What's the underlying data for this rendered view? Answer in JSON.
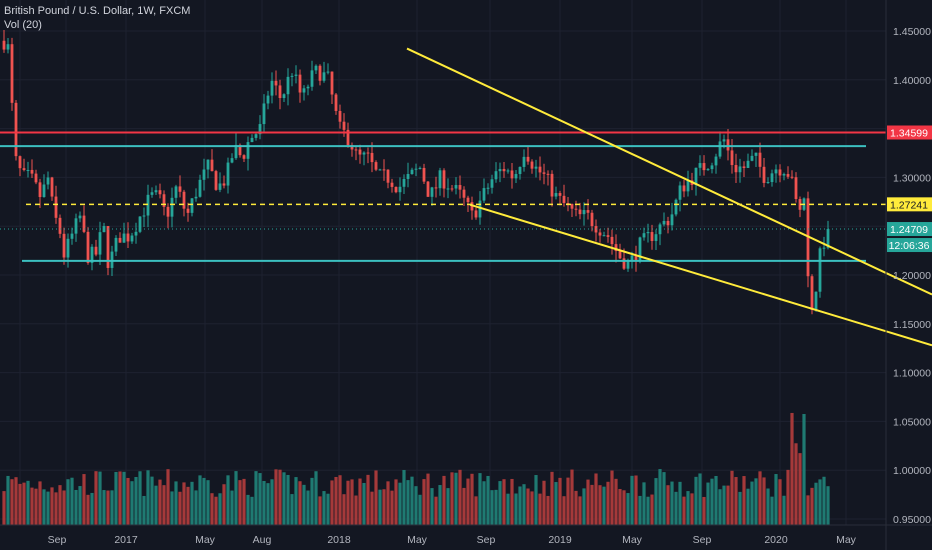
{
  "chart_data": {
    "type": "candlestick",
    "title": "British Pound / U.S. Dollar, 1W, FXCM",
    "subtitle": "Vol (20)",
    "y_axis": {
      "ticks": [
        "1.45000",
        "1.40000",
        "1.35000",
        "1.30000",
        "1.25000",
        "1.20000",
        "1.15000",
        "1.10000",
        "1.05000",
        "1.00000",
        "0.95000"
      ],
      "range": [
        0.95,
        1.45
      ],
      "position": "right"
    },
    "x_axis": {
      "labels": [
        "Sep",
        "2017",
        "May",
        "Aug",
        "2018",
        "May",
        "Sep",
        "2019",
        "May",
        "Sep",
        "2020",
        "May"
      ]
    },
    "price_tags": [
      {
        "value": "1.34599",
        "color": "#f23645",
        "text_color": "#ffffff"
      },
      {
        "value": "1.27241",
        "color": "#ffeb3b",
        "text_color": "#131722"
      },
      {
        "value": "1.24709",
        "color": "#26a69a",
        "text_color": "#ffffff"
      },
      {
        "value": "12:06:36",
        "color": "#26a69a",
        "text_color": "#ffffff"
      }
    ],
    "horizontal_lines": [
      {
        "price": 1.346,
        "color": "#f23645",
        "style": "solid"
      },
      {
        "price": 1.332,
        "color": "#3cc0c0",
        "style": "solid"
      },
      {
        "price": 1.2724,
        "color": "#ffeb3b",
        "style": "dashed"
      },
      {
        "price": 1.2145,
        "color": "#3cc0c0",
        "style": "solid"
      }
    ],
    "trendlines": [
      {
        "from": [
          1.432,
          "2018-04"
        ],
        "to": [
          1.19,
          "2020-06"
        ],
        "color": "#ffeb3b"
      },
      {
        "from": [
          1.272,
          "2018-08"
        ],
        "to": [
          1.137,
          "2020-06"
        ],
        "color": "#ffeb3b"
      }
    ],
    "colors": {
      "up": "#26a69a",
      "down": "#ef5350",
      "up_volume": "#1f7a72",
      "down_volume": "#a5393a",
      "grid": "#1e2230",
      "background": "#131722"
    },
    "grid": true
  }
}
